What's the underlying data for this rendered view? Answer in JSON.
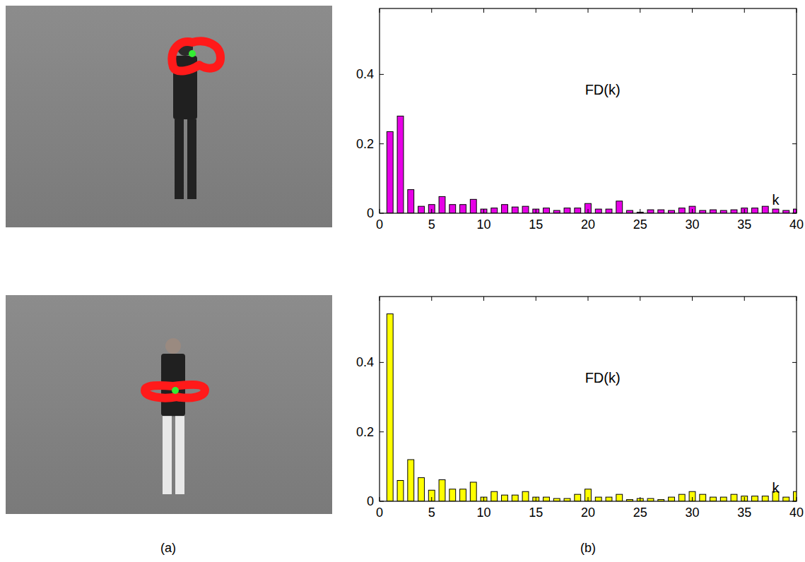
{
  "chart_data": [
    {
      "type": "bar",
      "color": "#e600e6",
      "grid": false,
      "annotations": [
        "FD(k)",
        "k"
      ],
      "x": [
        1,
        2,
        3,
        4,
        5,
        6,
        7,
        8,
        9,
        10,
        11,
        12,
        13,
        14,
        15,
        16,
        17,
        18,
        19,
        20,
        21,
        22,
        23,
        24,
        25,
        26,
        27,
        28,
        29,
        30,
        31,
        32,
        33,
        34,
        35,
        36,
        37,
        38,
        39,
        40
      ],
      "values": [
        0.235,
        0.28,
        0.068,
        0.02,
        0.025,
        0.048,
        0.025,
        0.025,
        0.04,
        0.012,
        0.015,
        0.025,
        0.018,
        0.02,
        0.012,
        0.015,
        0.008,
        0.015,
        0.015,
        0.028,
        0.012,
        0.012,
        0.035,
        0.008,
        0.003,
        0.01,
        0.01,
        0.008,
        0.015,
        0.02,
        0.008,
        0.01,
        0.008,
        0.01,
        0.015,
        0.015,
        0.02,
        0.012,
        0.008,
        0.012
      ],
      "xlim": [
        0,
        40
      ],
      "xticks": [
        0,
        5,
        10,
        15,
        20,
        25,
        30,
        35,
        40
      ],
      "ylim": [
        0,
        0.59
      ],
      "yticks": [
        0,
        0.2,
        0.4
      ]
    },
    {
      "type": "bar",
      "color": "#ffff00",
      "grid": false,
      "annotations": [
        "FD(k)",
        "k"
      ],
      "x": [
        1,
        2,
        3,
        4,
        5,
        6,
        7,
        8,
        9,
        10,
        11,
        12,
        13,
        14,
        15,
        16,
        17,
        18,
        19,
        20,
        21,
        22,
        23,
        24,
        25,
        26,
        27,
        28,
        29,
        30,
        31,
        32,
        33,
        34,
        35,
        36,
        37,
        38,
        39,
        40
      ],
      "values": [
        0.54,
        0.06,
        0.12,
        0.068,
        0.032,
        0.062,
        0.035,
        0.035,
        0.055,
        0.012,
        0.028,
        0.018,
        0.018,
        0.028,
        0.012,
        0.012,
        0.008,
        0.008,
        0.02,
        0.035,
        0.012,
        0.012,
        0.02,
        0.005,
        0.008,
        0.008,
        0.005,
        0.012,
        0.02,
        0.028,
        0.02,
        0.012,
        0.012,
        0.02,
        0.015,
        0.015,
        0.015,
        0.028,
        0.012,
        0.028
      ],
      "xlim": [
        0,
        40
      ],
      "xticks": [
        0,
        5,
        10,
        15,
        20,
        25,
        30,
        35,
        40
      ],
      "ylim": [
        0,
        0.59
      ],
      "yticks": [
        0,
        0.2,
        0.4
      ]
    }
  ],
  "panel_labels": [
    "(a)",
    "(b)"
  ]
}
